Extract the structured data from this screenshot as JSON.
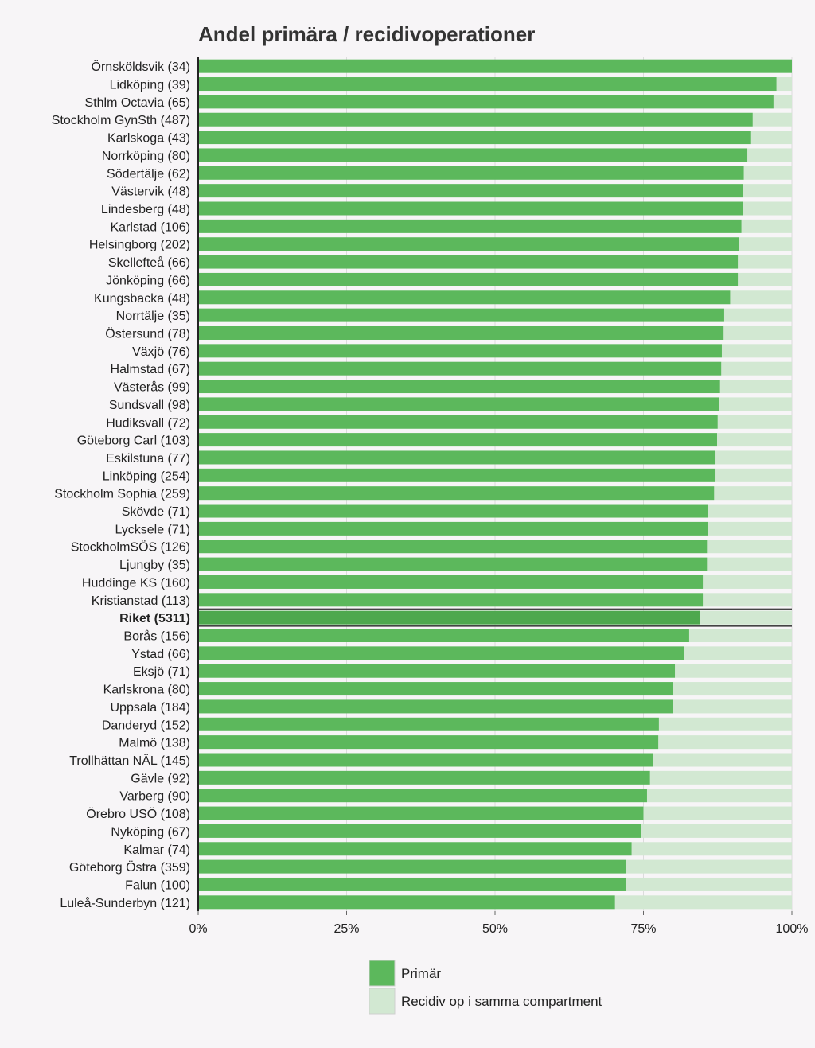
{
  "chart_data": {
    "type": "bar",
    "orientation": "horizontal",
    "stacked": true,
    "title": "Andel primära / recidivoperationer",
    "xlim": [
      0,
      100
    ],
    "xticks": [
      0,
      25,
      50,
      75,
      100
    ],
    "xtick_labels": [
      "0%",
      "25%",
      "50%",
      "75%",
      "100%"
    ],
    "grid": true,
    "highlight_category": "Riket (5311)",
    "series": [
      {
        "name": "Primär",
        "color": "#5cb85c"
      },
      {
        "name": "Recidiv op i samma compartment",
        "color": "#d2e8d2"
      }
    ],
    "categories": [
      "Örnsköldsvik (34)",
      "Lidköping (39)",
      "Sthlm Octavia (65)",
      "Stockholm GynSth (487)",
      "Karlskoga (43)",
      "Norrköping (80)",
      "Södertälje (62)",
      "Västervik (48)",
      "Lindesberg (48)",
      "Karlstad (106)",
      "Helsingborg (202)",
      "Skellefteå (66)",
      "Jönköping (66)",
      "Kungsbacka (48)",
      "Norrtälje (35)",
      "Östersund (78)",
      "Växjö (76)",
      "Halmstad (67)",
      "Västerås (99)",
      "Sundsvall (98)",
      "Hudiksvall (72)",
      "Göteborg Carl (103)",
      "Eskilstuna (77)",
      "Linköping (254)",
      "Stockholm Sophia (259)",
      "Skövde (71)",
      "Lycksele (71)",
      "StockholmSÖS (126)",
      "Ljungby (35)",
      "Huddinge KS (160)",
      "Kristianstad (113)",
      "Riket (5311)",
      "Borås (156)",
      "Ystad (66)",
      "Eksjö (71)",
      "Karlskrona (80)",
      "Uppsala (184)",
      "Danderyd (152)",
      "Malmö (138)",
      "Trollhättan NÄL (145)",
      "Gävle (92)",
      "Varberg (90)",
      "Örebro USÖ (108)",
      "Nyköping (67)",
      "Kalmar (74)",
      "Göteborg Östra (359)",
      "Falun (100)",
      "Luleå-Sunderbyn (121)"
    ],
    "values": [
      100.0,
      97.4,
      96.9,
      93.4,
      93.0,
      92.5,
      91.9,
      91.7,
      91.7,
      91.5,
      91.1,
      90.9,
      90.9,
      89.6,
      88.6,
      88.5,
      88.2,
      88.1,
      87.9,
      87.8,
      87.5,
      87.4,
      87.0,
      87.0,
      86.9,
      85.9,
      85.9,
      85.7,
      85.7,
      85.0,
      85.0,
      84.5,
      82.7,
      81.8,
      80.3,
      80.0,
      79.9,
      77.6,
      77.5,
      76.6,
      76.1,
      75.6,
      75.0,
      74.6,
      73.0,
      72.1,
      72.0,
      70.2
    ]
  }
}
